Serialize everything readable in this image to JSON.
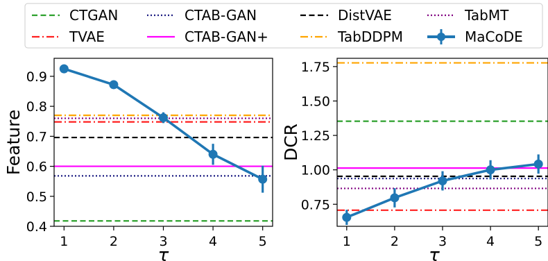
{
  "legend": {
    "position": "top",
    "columns": 4,
    "entries": [
      {
        "name": "CTGAN",
        "color": "#2ca02c",
        "style": "dashed"
      },
      {
        "name": "TVAE",
        "color": "#ff1f1f",
        "style": "dashdot"
      },
      {
        "name": "CTAB-GAN",
        "color": "#1a1a80",
        "style": "dotted"
      },
      {
        "name": "CTAB-GAN+",
        "color": "#ff00ff",
        "style": "solid"
      },
      {
        "name": "DistVAE",
        "color": "#000000",
        "style": "dashed"
      },
      {
        "name": "TabDDPM",
        "color": "#ffa500",
        "style": "dashdot"
      },
      {
        "name": "TabMT",
        "color": "#800080",
        "style": "dotted"
      },
      {
        "name": "MaCoDE",
        "color": "#1f77b4",
        "style": "solid-marker"
      }
    ]
  },
  "chart_data": [
    {
      "type": "line",
      "xlabel": "τ",
      "ylabel": "Feature",
      "x_ticks": [
        "1",
        "2",
        "3",
        "4",
        "5"
      ],
      "xlim": [
        0.8,
        5.2
      ],
      "ylim": [
        0.4,
        0.96
      ],
      "y_ticks": [
        "0.4",
        "0.5",
        "0.6",
        "0.7",
        "0.8",
        "0.9"
      ],
      "y_tick_values": [
        0.4,
        0.5,
        0.6,
        0.7,
        0.8,
        0.9
      ],
      "grid": false,
      "baselines": [
        {
          "name": "CTGAN",
          "value": 0.418
        },
        {
          "name": "TVAE",
          "value": 0.748
        },
        {
          "name": "CTAB-GAN",
          "value": 0.568
        },
        {
          "name": "CTAB-GAN+",
          "value": 0.6
        },
        {
          "name": "DistVAE",
          "value": 0.696
        },
        {
          "name": "TabDDPM",
          "value": 0.77
        },
        {
          "name": "TabMT",
          "value": 0.76
        }
      ],
      "series": [
        {
          "name": "MaCoDE",
          "x": [
            1,
            2,
            3,
            4,
            5
          ],
          "values": [
            0.925,
            0.872,
            0.762,
            0.64,
            0.557
          ],
          "error": [
            0.005,
            0.006,
            0.018,
            0.035,
            0.045
          ]
        }
      ]
    },
    {
      "type": "line",
      "xlabel": "τ",
      "ylabel": "DCR",
      "x_ticks": [
        "1",
        "2",
        "3",
        "4",
        "5"
      ],
      "xlim": [
        0.8,
        5.2
      ],
      "ylim": [
        0.59,
        1.81
      ],
      "y_ticks": [
        "0.75",
        "1.00",
        "1.25",
        "1.50",
        "1.75"
      ],
      "y_tick_values": [
        0.75,
        1.0,
        1.25,
        1.5,
        1.75
      ],
      "grid": false,
      "baselines": [
        {
          "name": "CTGAN",
          "value": 1.353
        },
        {
          "name": "TVAE",
          "value": 0.707
        },
        {
          "name": "CTAB-GAN",
          "value": 0.937
        },
        {
          "name": "CTAB-GAN+",
          "value": 1.013
        },
        {
          "name": "DistVAE",
          "value": 0.953
        },
        {
          "name": "TabDDPM",
          "value": 1.777
        },
        {
          "name": "TabMT",
          "value": 0.865
        }
      ],
      "series": [
        {
          "name": "MaCoDE",
          "x": [
            1,
            2,
            3,
            4,
            5
          ],
          "values": [
            0.655,
            0.797,
            0.92,
            1.0,
            1.042
          ],
          "error": [
            0.055,
            0.07,
            0.07,
            0.07,
            0.07
          ]
        }
      ]
    }
  ]
}
